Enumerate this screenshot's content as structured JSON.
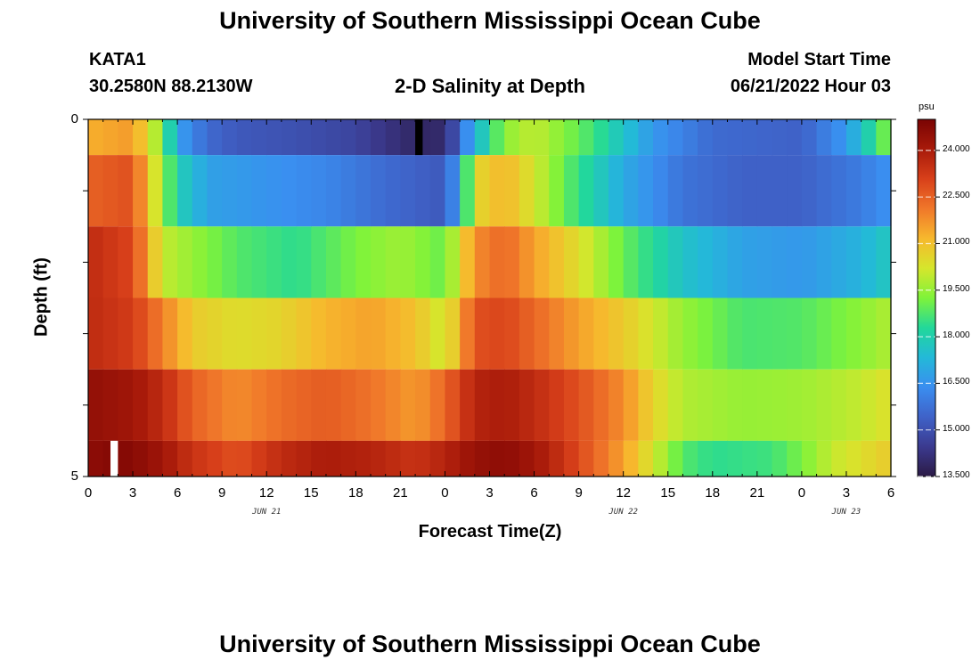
{
  "page_title": "University of Southern Mississippi Ocean Cube",
  "page_title_bottom": "University of Southern Mississippi Ocean Cube",
  "station": {
    "id": "KATA1",
    "coords": "30.2580N  88.2130W"
  },
  "model": {
    "start_label": "Model Start Time",
    "start_value": "06/21/2022 Hour 03"
  },
  "chart_data": {
    "type": "heatmap",
    "title": "2-D Salinity at Depth",
    "xlabel": "Forecast Time(Z)",
    "ylabel": "Depth (ft)",
    "ylim": [
      0,
      5
    ],
    "y_tick_labels": [
      "0",
      "5"
    ],
    "x_tick_labels": [
      "0",
      "3",
      "6",
      "9",
      "12",
      "15",
      "18",
      "21",
      "0",
      "3",
      "6",
      "9",
      "12",
      "15",
      "18",
      "21",
      "0",
      "3",
      "6"
    ],
    "date_labels": [
      {
        "text": "JUN 21",
        "hour": 12
      },
      {
        "text": "JUN 22",
        "hour": 36
      },
      {
        "text": "JUN 23",
        "hour": 60
      }
    ],
    "x_hours_range": [
      0,
      54
    ],
    "time_step_hours": 1,
    "rows": [
      {
        "depth_range": [
          0.0,
          0.5
        ],
        "key_hours": [
          0,
          3,
          4,
          5,
          6,
          8,
          10,
          14,
          18,
          20,
          22,
          24,
          25,
          26,
          28,
          30,
          34,
          38,
          42,
          48,
          51,
          53,
          54
        ],
        "key_values": [
          21.3,
          21.6,
          20.5,
          19.2,
          16.8,
          15.6,
          15.2,
          15.0,
          14.7,
          14.3,
          13.9,
          14.0,
          15.6,
          17.2,
          19.4,
          20.0,
          18.6,
          16.6,
          15.6,
          15.4,
          16.6,
          18.5,
          19.5
        ]
      },
      {
        "depth_range": [
          0.5,
          1.5
        ],
        "key_hours": [
          0,
          3,
          4,
          5,
          6,
          8,
          12,
          16,
          20,
          24,
          25,
          26,
          28,
          30,
          32,
          36,
          40,
          44,
          48,
          52,
          54
        ],
        "key_values": [
          22.5,
          22.8,
          21.0,
          19.5,
          18.0,
          16.8,
          16.5,
          16.2,
          15.6,
          15.2,
          17.0,
          20.5,
          21.2,
          20.2,
          19.0,
          17.0,
          15.8,
          15.4,
          15.4,
          16.0,
          16.5
        ]
      },
      {
        "depth_range": [
          1.5,
          2.5
        ],
        "key_hours": [
          0,
          3,
          4,
          5,
          7,
          10,
          14,
          18,
          21,
          24,
          26,
          28,
          30,
          33,
          36,
          40,
          44,
          48,
          52,
          54
        ],
        "key_values": [
          23.6,
          23.0,
          21.5,
          20.0,
          19.5,
          18.8,
          18.4,
          19.2,
          19.6,
          19.0,
          21.8,
          22.4,
          21.5,
          20.4,
          19.0,
          17.6,
          16.8,
          16.6,
          17.2,
          17.8
        ]
      },
      {
        "depth_range": [
          2.5,
          3.5
        ],
        "key_hours": [
          0,
          3,
          5,
          7,
          10,
          13,
          16,
          19,
          22,
          24,
          26,
          28,
          30,
          33,
          36,
          40,
          44,
          48,
          52,
          54
        ],
        "key_values": [
          23.6,
          23.2,
          22.0,
          20.8,
          20.4,
          20.6,
          21.2,
          21.5,
          21.0,
          20.0,
          22.8,
          23.0,
          22.4,
          21.5,
          20.8,
          19.5,
          18.7,
          18.8,
          19.4,
          19.8
        ]
      },
      {
        "depth_range": [
          3.5,
          4.5
        ],
        "key_hours": [
          0,
          3,
          5,
          7,
          10,
          13,
          16,
          19,
          22,
          24,
          26,
          28,
          30,
          33,
          36,
          38,
          40,
          44,
          48,
          52,
          54
        ],
        "key_values": [
          24.5,
          24.2,
          23.6,
          22.5,
          21.8,
          22.3,
          22.6,
          22.2,
          21.6,
          22.4,
          23.8,
          24.0,
          23.6,
          22.8,
          21.8,
          20.6,
          19.8,
          19.5,
          19.6,
          20.0,
          20.4
        ]
      },
      {
        "depth_range": [
          4.5,
          5.0
        ],
        "key_hours": [
          0,
          2,
          3,
          5,
          7,
          10,
          13,
          16,
          19,
          22,
          24,
          26,
          28,
          30,
          32,
          36,
          38,
          40,
          42,
          46,
          48,
          50,
          54
        ],
        "key_values": [
          24.6,
          24.8,
          24.7,
          24.2,
          23.4,
          22.8,
          23.6,
          24.0,
          23.8,
          23.4,
          23.8,
          24.4,
          24.6,
          24.2,
          23.4,
          21.5,
          20.2,
          18.8,
          18.4,
          18.6,
          19.2,
          20.0,
          20.8
        ]
      }
    ],
    "missing_cells": [
      {
        "hour": 22,
        "depth_range": [
          0.0,
          0.5
        ],
        "color": "#000000"
      },
      {
        "hour": 1.5,
        "depth_range": [
          4.5,
          5.0
        ],
        "color": "#ffffff"
      }
    ],
    "colorbar": {
      "unit": "psu",
      "min": 13.5,
      "max": 25.0,
      "tick_labels": [
        "24.000",
        "22.500",
        "21.000",
        "19.500",
        "18.000",
        "16.500",
        "15.000",
        "13.500"
      ],
      "tick_values": [
        24.0,
        22.5,
        21.0,
        19.5,
        18.0,
        16.5,
        15.0,
        13.5
      ],
      "stops": [
        "#2b1a45",
        "#3b3a8f",
        "#3f62c8",
        "#3a8ef0",
        "#23b9d8",
        "#22d89a",
        "#7ff33a",
        "#d6e62c",
        "#f7b82d",
        "#f0772a",
        "#d8401a",
        "#a81a0a",
        "#7a0403"
      ]
    }
  }
}
